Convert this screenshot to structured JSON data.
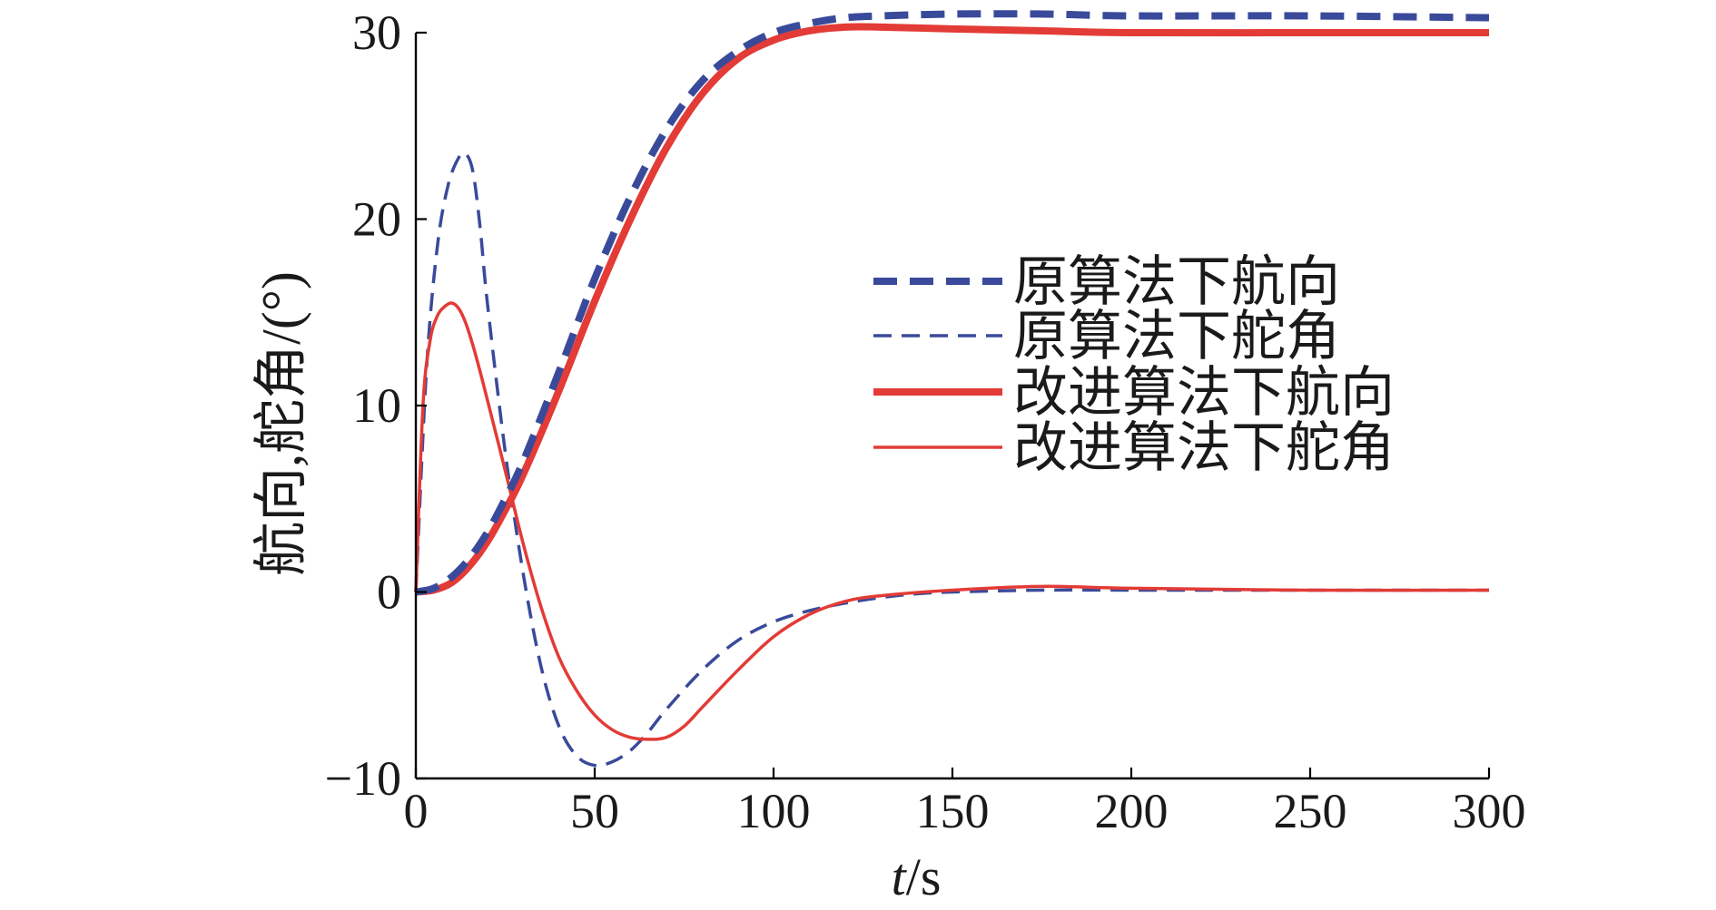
{
  "chart_data": {
    "type": "line",
    "title": "",
    "xlabel": {
      "italic": "t",
      "rest": "/s"
    },
    "ylabel": "航向,舵角/(°)",
    "xlim": [
      0,
      300
    ],
    "ylim": [
      -10,
      30
    ],
    "xticks": [
      "0",
      "50",
      "100",
      "150",
      "200",
      "250",
      "300"
    ],
    "xtick_values": [
      0,
      50,
      100,
      150,
      200,
      250,
      300
    ],
    "yticks": [
      "−10",
      "0",
      "10",
      "20",
      "30"
    ],
    "ytick_values": [
      -10,
      0,
      10,
      20,
      30
    ],
    "grid": false,
    "legend_position": "right-center",
    "series": [
      {
        "name": "原算法下航向",
        "color": "#3a4a9a",
        "style": "dashed-thick",
        "x": [
          0,
          5,
          10,
          15,
          20,
          25,
          30,
          40,
          50,
          60,
          70,
          80,
          90,
          100,
          110,
          120,
          130,
          150,
          175,
          200,
          250,
          300
        ],
        "y": [
          0,
          0.2,
          0.8,
          1.8,
          3.2,
          5.0,
          7.0,
          11.8,
          16.8,
          21.2,
          24.8,
          27.4,
          29.0,
          30.0,
          30.5,
          30.8,
          30.9,
          31.0,
          31.0,
          30.9,
          30.9,
          30.8
        ]
      },
      {
        "name": "原算法下舵角",
        "color": "#3a4a9a",
        "style": "dashed-thin",
        "x": [
          0,
          3,
          6,
          9,
          12,
          14,
          16,
          18,
          20,
          25,
          30,
          35,
          40,
          45,
          50,
          55,
          60,
          65,
          70,
          80,
          90,
          100,
          110,
          120,
          130,
          140,
          150,
          175,
          200,
          250,
          300
        ],
        "y": [
          0,
          12.0,
          18.5,
          21.8,
          23.3,
          23.5,
          22.5,
          19.5,
          15.5,
          7.5,
          1.0,
          -4.0,
          -7.2,
          -8.8,
          -9.3,
          -9.1,
          -8.5,
          -7.5,
          -6.3,
          -4.2,
          -2.6,
          -1.6,
          -1.0,
          -0.6,
          -0.3,
          -0.1,
          0.0,
          0.1,
          0.1,
          0.1,
          0.1
        ]
      },
      {
        "name": "改进算法下航向",
        "color": "#e33b36",
        "style": "solid-thick",
        "x": [
          0,
          5,
          10,
          15,
          20,
          25,
          30,
          40,
          50,
          60,
          70,
          80,
          90,
          100,
          110,
          120,
          130,
          150,
          175,
          200,
          250,
          300
        ],
        "y": [
          0,
          0.1,
          0.5,
          1.4,
          2.7,
          4.4,
          6.3,
          10.8,
          15.6,
          20.0,
          23.8,
          26.7,
          28.6,
          29.6,
          30.1,
          30.3,
          30.3,
          30.2,
          30.1,
          30.0,
          30.0,
          30.0
        ]
      },
      {
        "name": "改进算法下舵角",
        "color": "#e33b36",
        "style": "solid-thin",
        "x": [
          0,
          2,
          4,
          6,
          8,
          10,
          12,
          14,
          16,
          18,
          20,
          25,
          30,
          35,
          40,
          45,
          50,
          55,
          60,
          65,
          70,
          75,
          80,
          90,
          100,
          110,
          120,
          130,
          150,
          175,
          200,
          250,
          300
        ],
        "y": [
          0,
          10.0,
          13.5,
          14.8,
          15.3,
          15.5,
          15.2,
          14.4,
          13.2,
          11.8,
          10.3,
          6.5,
          2.6,
          -0.8,
          -3.5,
          -5.3,
          -6.6,
          -7.4,
          -7.8,
          -7.9,
          -7.8,
          -7.2,
          -6.2,
          -4.2,
          -2.4,
          -1.2,
          -0.5,
          -0.2,
          0.1,
          0.3,
          0.2,
          0.1,
          0.1
        ]
      }
    ]
  }
}
